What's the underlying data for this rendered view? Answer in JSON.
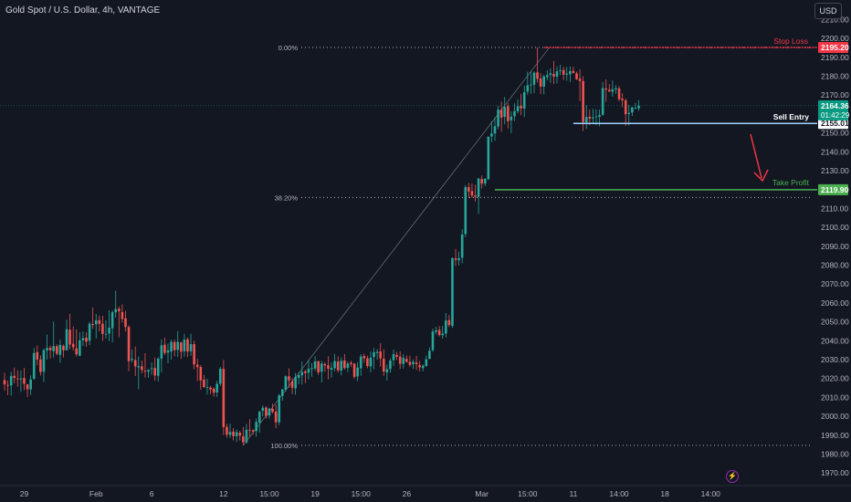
{
  "header": {
    "symbol_title": "Gold Spot / U.S. Dollar, 4h, VANTAGE",
    "currency_button": "USD"
  },
  "colors": {
    "background": "#131722",
    "bull": "#26a69a",
    "bear": "#ef5350",
    "stop_loss": "#f23645",
    "take_profit": "#4caf50",
    "sell_entry": "#9fd0ff",
    "current_price": "#089981",
    "fib": "#d1d4dc"
  },
  "chart_data": {
    "type": "candlestick",
    "y_axis": {
      "ticks": [
        1970,
        1980,
        1990,
        2000,
        2010,
        2020,
        2030,
        2040,
        2050,
        2060,
        2070,
        2080,
        2090,
        2100,
        2110,
        2120,
        2130,
        2140,
        2150,
        2160,
        2170,
        2180,
        2190,
        2200,
        2210
      ],
      "tick_labels": [
        "1970.00",
        "1980.00",
        "1990.00",
        "2000.00",
        "2010.00",
        "2020.00",
        "2030.00",
        "2040.00",
        "2050.00",
        "2060.00",
        "2070.00",
        "2080.00",
        "2090.00",
        "2100.00",
        "2110.00",
        "2120.00",
        "2130.00",
        "2140.00",
        "2150.00",
        "2160.00",
        "2170.00",
        "2180.00",
        "2190.00",
        "2200.00",
        "2210.00"
      ],
      "ylim": [
        1966,
        2216
      ]
    },
    "x_axis": {
      "tick_labels": [
        "29",
        "Feb",
        "6",
        "12",
        "15:00",
        "19",
        "15:00",
        "26",
        "Mar",
        "15:00",
        "11",
        "14:00",
        "18",
        "14:00"
      ],
      "tick_bar_index": [
        6,
        28,
        45,
        67,
        81,
        95,
        109,
        123,
        146,
        160,
        174,
        188,
        202,
        216
      ]
    },
    "current_price": {
      "value": 2164.36,
      "label": "2164.36",
      "countdown": "01:42:29"
    },
    "levels": [
      {
        "name": "Stop Loss",
        "value": 2195.2,
        "label": "2195.20",
        "text": "Stop Loss"
      },
      {
        "name": "Sell Entry",
        "value": 2155.01,
        "label": "2155.01",
        "text": "Sell Entry"
      },
      {
        "name": "Take Profit",
        "value": 2119.9,
        "label": "2119.90",
        "text": "Take Profit"
      }
    ],
    "fibonacci": [
      {
        "label": "0.00%",
        "value": 2195.2
      },
      {
        "label": "38.20%",
        "value": 2115.8
      },
      {
        "label": "100.00%",
        "value": 1984.6
      }
    ],
    "candles": [
      [
        2019.2,
        2023.1,
        2013.7,
        2016.9
      ],
      [
        2016.6,
        2018.9,
        2011.2,
        2016.4
      ],
      [
        2016.3,
        2023.6,
        2011.0,
        2021.4
      ],
      [
        2021.4,
        2025.8,
        2017.5,
        2020.3
      ],
      [
        2020.0,
        2024.3,
        2015.6,
        2019.7
      ],
      [
        2019.5,
        2024.2,
        2012.9,
        2020.0
      ],
      [
        2020.3,
        2025.6,
        2013.9,
        2017.2
      ],
      [
        2016.9,
        2017.1,
        2010.2,
        2014.3
      ],
      [
        2014.2,
        2021.7,
        2011.3,
        2019.5
      ],
      [
        2019.9,
        2036.2,
        2019.3,
        2033.5
      ],
      [
        2034.0,
        2037.5,
        2027.0,
        2030.1
      ],
      [
        2030.1,
        2032.2,
        2021.6,
        2023.4
      ],
      [
        2023.6,
        2035.9,
        2018.2,
        2035.0
      ],
      [
        2034.8,
        2043.2,
        2030.0,
        2036.2
      ],
      [
        2036.3,
        2037.5,
        2030.6,
        2034.9
      ],
      [
        2034.5,
        2050.1,
        2031.1,
        2037.2
      ],
      [
        2037.1,
        2038.1,
        2032.3,
        2033.1
      ],
      [
        2032.5,
        2040.5,
        2028.3,
        2037.8
      ],
      [
        2037.3,
        2038.0,
        2031.1,
        2034.9
      ],
      [
        2035.0,
        2051.1,
        2034.8,
        2046.1
      ],
      [
        2045.8,
        2054.2,
        2035.5,
        2038.0
      ],
      [
        2038.4,
        2047.6,
        2034.8,
        2036.5
      ],
      [
        2036.0,
        2046.1,
        2031.6,
        2032.8
      ],
      [
        2032.1,
        2044.5,
        2031.7,
        2040.2
      ],
      [
        2040.2,
        2044.9,
        2037.2,
        2041.4
      ],
      [
        2041.6,
        2044.5,
        2036.9,
        2039.5
      ],
      [
        2040.0,
        2050.0,
        2037.7,
        2049.0
      ],
      [
        2048.8,
        2057.5,
        2046.3,
        2048.3
      ],
      [
        2048.7,
        2054.2,
        2041.2,
        2050.7
      ],
      [
        2050.9,
        2053.3,
        2045.0,
        2048.9
      ],
      [
        2049.0,
        2053.2,
        2039.9,
        2043.6
      ],
      [
        2043.6,
        2050.8,
        2041.2,
        2043.6
      ],
      [
        2043.8,
        2056.0,
        2039.8,
        2046.9
      ],
      [
        2046.6,
        2056.1,
        2039.1,
        2055.1
      ],
      [
        2055.0,
        2066.5,
        2052.2,
        2056.8
      ],
      [
        2056.9,
        2058.1,
        2041.8,
        2055.6
      ],
      [
        2055.1,
        2059.2,
        2049.6,
        2051.5
      ],
      [
        2051.9,
        2055.8,
        2044.8,
        2047.3
      ],
      [
        2047.3,
        2048.1,
        2023.9,
        2029.2
      ],
      [
        2029.8,
        2035.4,
        2028.5,
        2030.4
      ],
      [
        2029.8,
        2036.9,
        2021.3,
        2026.4
      ],
      [
        2025.9,
        2031.6,
        2014.3,
        2026.5
      ],
      [
        2026.5,
        2029.5,
        2022.8,
        2024.5
      ],
      [
        2024.1,
        2033.4,
        2020.5,
        2023.7
      ],
      [
        2023.6,
        2025.0,
        2020.4,
        2024.5
      ],
      [
        2025.0,
        2028.5,
        2021.9,
        2025.4
      ],
      [
        2025.6,
        2031.1,
        2018.8,
        2021.6
      ],
      [
        2021.5,
        2031.4,
        2018.4,
        2030.5
      ],
      [
        2030.5,
        2040.7,
        2023.3,
        2037.6
      ],
      [
        2037.9,
        2041.6,
        2032.5,
        2033.5
      ],
      [
        2033.7,
        2038.6,
        2028.0,
        2034.9
      ],
      [
        2034.3,
        2040.6,
        2030.0,
        2039.4
      ],
      [
        2039.3,
        2040.6,
        2031.8,
        2035.0
      ],
      [
        2035.2,
        2045.1,
        2031.5,
        2039.4
      ],
      [
        2039.1,
        2039.5,
        2030.4,
        2034.2
      ],
      [
        2034.4,
        2043.6,
        2031.6,
        2040.6
      ],
      [
        2040.8,
        2041.7,
        2031.4,
        2034.3
      ],
      [
        2034.4,
        2043.7,
        2032.0,
        2038.2
      ],
      [
        2038.2,
        2040.0,
        2024.9,
        2027.5
      ],
      [
        2027.3,
        2030.4,
        2018.7,
        2026.0
      ],
      [
        2026.1,
        2027.1,
        2014.1,
        2019.0
      ],
      [
        2019.4,
        2021.9,
        2015.1,
        2015.5
      ],
      [
        2015.3,
        2019.9,
        2011.5,
        2015.4
      ],
      [
        2015.2,
        2016.1,
        2011.8,
        2014.2
      ],
      [
        2014.6,
        2015.4,
        2010.4,
        2012.5
      ],
      [
        2012.6,
        2018.8,
        2010.3,
        2017.2
      ],
      [
        2017.2,
        2026.2,
        2016.0,
        2025.2
      ],
      [
        2025.1,
        2029.8,
        1990.1,
        1994.3
      ],
      [
        1994.4,
        1996.0,
        1988.7,
        1990.3
      ],
      [
        1990.2,
        1996.1,
        1988.6,
        1991.7
      ],
      [
        1991.9,
        1993.8,
        1987.2,
        1989.5
      ],
      [
        1989.5,
        1993.1,
        1986.4,
        1991.6
      ],
      [
        1991.3,
        1992.3,
        1987.2,
        1989.8
      ],
      [
        1989.4,
        1994.3,
        1984.6,
        1986.3
      ],
      [
        1986.2,
        1995.9,
        1985.6,
        1992.9
      ],
      [
        1992.8,
        1998.5,
        1989.0,
        1992.6
      ],
      [
        1992.6,
        1993.1,
        1990.2,
        1991.9
      ],
      [
        1992.2,
        1998.8,
        1989.2,
        1997.0
      ],
      [
        1996.6,
        2002.9,
        1991.3,
        2002.5
      ],
      [
        2002.9,
        2005.8,
        1999.9,
        2004.6
      ],
      [
        2004.6,
        2005.4,
        1998.7,
        2000.2
      ],
      [
        2000.4,
        2004.5,
        1998.8,
        2004.1
      ],
      [
        2003.9,
        2006.7,
        2001.6,
        2002.3
      ],
      [
        2002.5,
        2006.2,
        1993.7,
        1996.8
      ],
      [
        1996.9,
        2011.9,
        1995.3,
        2011.1
      ],
      [
        2010.8,
        2014.4,
        2008.2,
        2014.3
      ],
      [
        2014.1,
        2021.6,
        2013.1,
        2021.2
      ],
      [
        2021.2,
        2025.4,
        2015.1,
        2019.0
      ],
      [
        2018.5,
        2020.3,
        2011.7,
        2015.1
      ],
      [
        2014.8,
        2022.9,
        2011.4,
        2020.8
      ],
      [
        2020.4,
        2023.4,
        2017.0,
        2021.8
      ],
      [
        2021.7,
        2029.1,
        2016.8,
        2023.5
      ],
      [
        2023.8,
        2024.6,
        2017.6,
        2022.9
      ],
      [
        2023.1,
        2029.9,
        2019.5,
        2025.2
      ],
      [
        2025.1,
        2028.2,
        2020.9,
        2025.6
      ],
      [
        2025.3,
        2031.8,
        2024.1,
        2029.1
      ],
      [
        2029.1,
        2029.5,
        2022.0,
        2023.3
      ],
      [
        2023.6,
        2029.4,
        2017.9,
        2027.9
      ],
      [
        2027.6,
        2028.7,
        2023.5,
        2026.9
      ],
      [
        2027.0,
        2031.7,
        2019.5,
        2025.2
      ],
      [
        2024.7,
        2028.5,
        2020.4,
        2025.6
      ],
      [
        2025.5,
        2033.0,
        2023.8,
        2029.2
      ],
      [
        2029.0,
        2031.7,
        2023.1,
        2024.3
      ],
      [
        2024.2,
        2031.2,
        2021.6,
        2029.4
      ],
      [
        2029.6,
        2032.9,
        2024.7,
        2025.5
      ],
      [
        2025.7,
        2029.0,
        2023.4,
        2027.9
      ],
      [
        2028.3,
        2029.4,
        2026.1,
        2027.6
      ],
      [
        2027.9,
        2028.0,
        2019.8,
        2020.9
      ],
      [
        2021.1,
        2028.7,
        2018.6,
        2025.8
      ],
      [
        2025.4,
        2032.9,
        2021.5,
        2031.6
      ],
      [
        2031.9,
        2033.2,
        2028.3,
        2030.7
      ],
      [
        2030.7,
        2032.0,
        2025.4,
        2026.6
      ],
      [
        2026.4,
        2034.3,
        2023.3,
        2031.0
      ],
      [
        2031.4,
        2036.1,
        2024.9,
        2033.9
      ],
      [
        2033.5,
        2035.7,
        2030.0,
        2034.1
      ],
      [
        2034.3,
        2038.7,
        2026.3,
        2030.6
      ],
      [
        2030.5,
        2035.5,
        2021.4,
        2023.7
      ],
      [
        2023.2,
        2027.4,
        2019.0,
        2025.0
      ],
      [
        2025.0,
        2030.6,
        2023.0,
        2029.5
      ],
      [
        2029.7,
        2035.3,
        2026.6,
        2032.9
      ],
      [
        2032.5,
        2034.2,
        2029.9,
        2031.5
      ],
      [
        2031.6,
        2034.4,
        2025.1,
        2027.8
      ],
      [
        2027.7,
        2032.9,
        2025.3,
        2030.9
      ],
      [
        2030.4,
        2032.2,
        2028.3,
        2028.8
      ],
      [
        2028.8,
        2032.1,
        2026.2,
        2027.2
      ],
      [
        2027.6,
        2030.1,
        2025.2,
        2028.8
      ],
      [
        2028.4,
        2032.0,
        2024.6,
        2027.6
      ],
      [
        2027.1,
        2029.3,
        2023.8,
        2025.9
      ],
      [
        2025.5,
        2027.5,
        2023.8,
        2026.8
      ],
      [
        2026.6,
        2032.1,
        2026.3,
        2030.2
      ],
      [
        2030.4,
        2036.5,
        2030.3,
        2034.7
      ],
      [
        2035.0,
        2046.4,
        2034.1,
        2044.9
      ],
      [
        2044.7,
        2047.4,
        2043.3,
        2045.5
      ],
      [
        2045.7,
        2047.7,
        2042.3,
        2043.0
      ],
      [
        2042.9,
        2047.9,
        2041.1,
        2043.8
      ],
      [
        2043.8,
        2054.7,
        2041.8,
        2050.7
      ],
      [
        2050.9,
        2053.6,
        2047.3,
        2048.3
      ],
      [
        2047.9,
        2084.1,
        2046.8,
        2083.7
      ],
      [
        2083.6,
        2088.6,
        2079.6,
        2082.8
      ],
      [
        2082.6,
        2087.2,
        2079.9,
        2083.7
      ],
      [
        2083.9,
        2099.0,
        2080.9,
        2096.2
      ],
      [
        2096.5,
        2122.4,
        2094.9,
        2121.3
      ],
      [
        2121.2,
        2123.5,
        2115.5,
        2119.0
      ],
      [
        2119.2,
        2123.2,
        2115.7,
        2116.8
      ],
      [
        2116.9,
        2122.5,
        2113.6,
        2116.2
      ],
      [
        2116.1,
        2126.2,
        2107.1,
        2125.8
      ],
      [
        2125.6,
        2127.5,
        2120.6,
        2123.1
      ],
      [
        2123.2,
        2126.1,
        2121.8,
        2125.7
      ],
      [
        2125.5,
        2148.1,
        2125.1,
        2148.0
      ],
      [
        2148.1,
        2156.1,
        2145.0,
        2149.7
      ],
      [
        2149.7,
        2158.2,
        2145.8,
        2153.5
      ],
      [
        2153.4,
        2164.3,
        2151.9,
        2162.3
      ],
      [
        2162.3,
        2166.5,
        2150.6,
        2158.1
      ],
      [
        2158.5,
        2169.0,
        2154.5,
        2163.7
      ],
      [
        2164.2,
        2165.8,
        2152.3,
        2156.2
      ],
      [
        2156.6,
        2161.4,
        2149.8,
        2158.6
      ],
      [
        2158.8,
        2165.7,
        2156.3,
        2161.5
      ],
      [
        2161.4,
        2167.8,
        2160.3,
        2164.1
      ],
      [
        2164.5,
        2170.6,
        2159.4,
        2163.0
      ],
      [
        2162.9,
        2174.9,
        2158.4,
        2171.5
      ],
      [
        2171.8,
        2182.3,
        2170.2,
        2175.2
      ],
      [
        2175.3,
        2182.8,
        2170.6,
        2175.5
      ],
      [
        2175.5,
        2182.6,
        2171.0,
        2181.9
      ],
      [
        2182.0,
        2195.2,
        2176.6,
        2178.6
      ],
      [
        2178.8,
        2181.6,
        2170.5,
        2174.5
      ],
      [
        2174.5,
        2180.8,
        2170.4,
        2179.9
      ],
      [
        2179.5,
        2183.1,
        2177.7,
        2180.5
      ],
      [
        2180.7,
        2184.2,
        2176.5,
        2181.5
      ],
      [
        2181.2,
        2188.0,
        2175.8,
        2179.8
      ],
      [
        2179.7,
        2185.2,
        2176.1,
        2182.6
      ],
      [
        2182.7,
        2186.0,
        2180.5,
        2183.1
      ],
      [
        2183.3,
        2185.0,
        2177.9,
        2180.8
      ],
      [
        2180.8,
        2184.9,
        2177.6,
        2181.4
      ],
      [
        2181.0,
        2185.1,
        2176.8,
        2182.7
      ],
      [
        2182.8,
        2185.0,
        2181.6,
        2181.6
      ],
      [
        2181.5,
        2182.4,
        2178.0,
        2178.4
      ],
      [
        2178.7,
        2183.6,
        2166.8,
        2177.4
      ],
      [
        2177.4,
        2180.0,
        2151.0,
        2155.7
      ],
      [
        2155.5,
        2164.8,
        2152.1,
        2158.4
      ],
      [
        2158.5,
        2162.4,
        2154.1,
        2157.5
      ],
      [
        2157.7,
        2162.7,
        2154.9,
        2158.2
      ],
      [
        2158.5,
        2162.5,
        2154.1,
        2158.7
      ],
      [
        2158.5,
        2162.3,
        2153.5,
        2159.4
      ],
      [
        2159.6,
        2176.9,
        2159.1,
        2173.7
      ],
      [
        2173.5,
        2178.3,
        2166.5,
        2172.9
      ],
      [
        2172.8,
        2175.8,
        2171.6,
        2171.9
      ],
      [
        2171.7,
        2177.6,
        2169.2,
        2173.1
      ],
      [
        2173.0,
        2175.2,
        2170.6,
        2173.6
      ],
      [
        2173.5,
        2174.8,
        2166.7,
        2167.8
      ],
      [
        2168.1,
        2171.0,
        2163.6,
        2167.3
      ],
      [
        2167.2,
        2168.2,
        2153.7,
        2159.9
      ],
      [
        2160.0,
        2164.8,
        2153.9,
        2160.6
      ],
      [
        2160.8,
        2163.7,
        2158.9,
        2163.5
      ],
      [
        2163.2,
        2166.0,
        2162.5,
        2163.2
      ],
      [
        2163.0,
        2167.3,
        2161.7,
        2164.4
      ]
    ]
  },
  "footer": {
    "flash_icon_label": "⚡"
  }
}
